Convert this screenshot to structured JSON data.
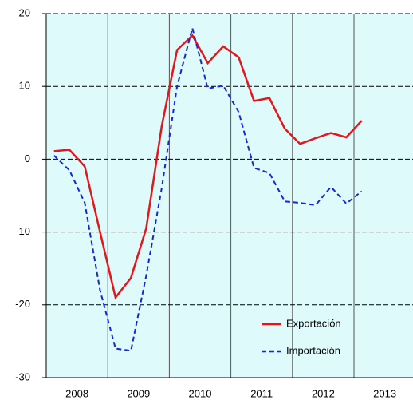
{
  "chart_data": {
    "type": "line",
    "categories": [
      "2008",
      null,
      null,
      null,
      "2009",
      null,
      null,
      null,
      "2010",
      null,
      null,
      null,
      "2011",
      null,
      null,
      null,
      "2012",
      null,
      null,
      null,
      "2013",
      null,
      null,
      null
    ],
    "series": [
      {
        "name": "Exportación",
        "color": "#e8141c",
        "dash": "solid",
        "values": [
          1.1,
          1.3,
          -1,
          -10,
          -19,
          -16.3,
          -9.5,
          4.5,
          15,
          17,
          13.2,
          15.5,
          14,
          8,
          8.4,
          4.2,
          2.1,
          2.9,
          3.6,
          3,
          5.3,
          null,
          null,
          null
        ]
      },
      {
        "name": "Importación",
        "color": "#1428d8",
        "dash": "dashed",
        "values": [
          0.5,
          -1.5,
          -6,
          -18,
          -26,
          -26.3,
          -16,
          -4,
          10,
          18,
          9.7,
          10.1,
          6.5,
          -1.2,
          -1.9,
          -5.8,
          -6,
          -6.3,
          -3.8,
          -6.1,
          -4.4,
          null,
          null,
          null
        ]
      }
    ],
    "ylim": [
      -30,
      20
    ],
    "yticks": [
      -30,
      -20,
      -10,
      0,
      10,
      20
    ],
    "grid": true,
    "legend": "lower right"
  }
}
